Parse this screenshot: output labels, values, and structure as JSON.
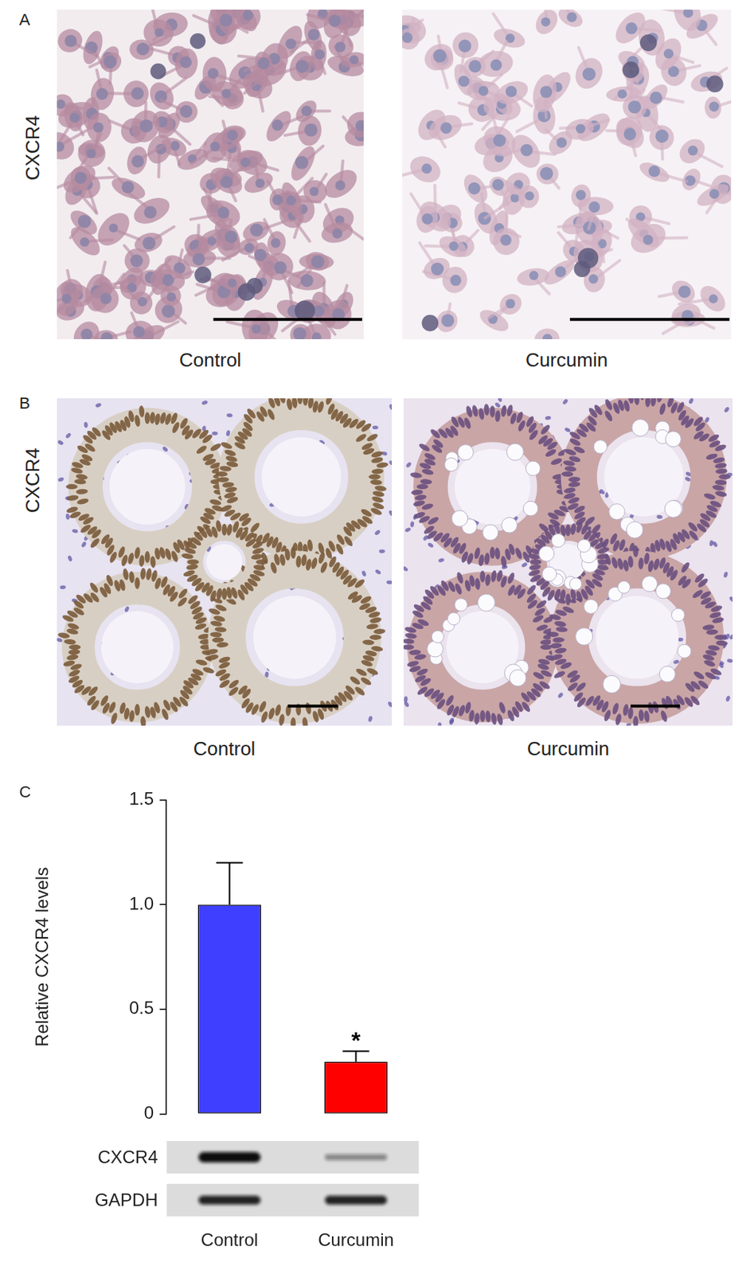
{
  "panels": [
    {
      "label": "A",
      "row_label": "CXCR4",
      "captions": [
        "Control",
        "Curcumin"
      ]
    },
    {
      "label": "B",
      "row_label": "CXCR4",
      "captions": [
        "Control",
        "Curcumin"
      ]
    },
    {
      "label": "C"
    }
  ],
  "chart_data": {
    "type": "bar",
    "categories": [
      "Control",
      "Curcumin"
    ],
    "values": [
      1.0,
      0.25
    ],
    "errors": [
      0.2,
      0.05
    ],
    "colors": [
      "#3f3fff",
      "#ff0000"
    ],
    "ylim": [
      0,
      1.5
    ],
    "yticks": [
      0,
      0.5,
      {
        "value": 1,
        "label": "1.0"
      },
      1.5
    ],
    "y_label": "Relative CXCR4 levels",
    "grid": false,
    "tick_labels": "y",
    "annotations": [
      {
        "category": "Curcumin",
        "text": "*"
      }
    ]
  },
  "blot": {
    "rows": [
      "CXCR4",
      "GAPDH"
    ]
  }
}
